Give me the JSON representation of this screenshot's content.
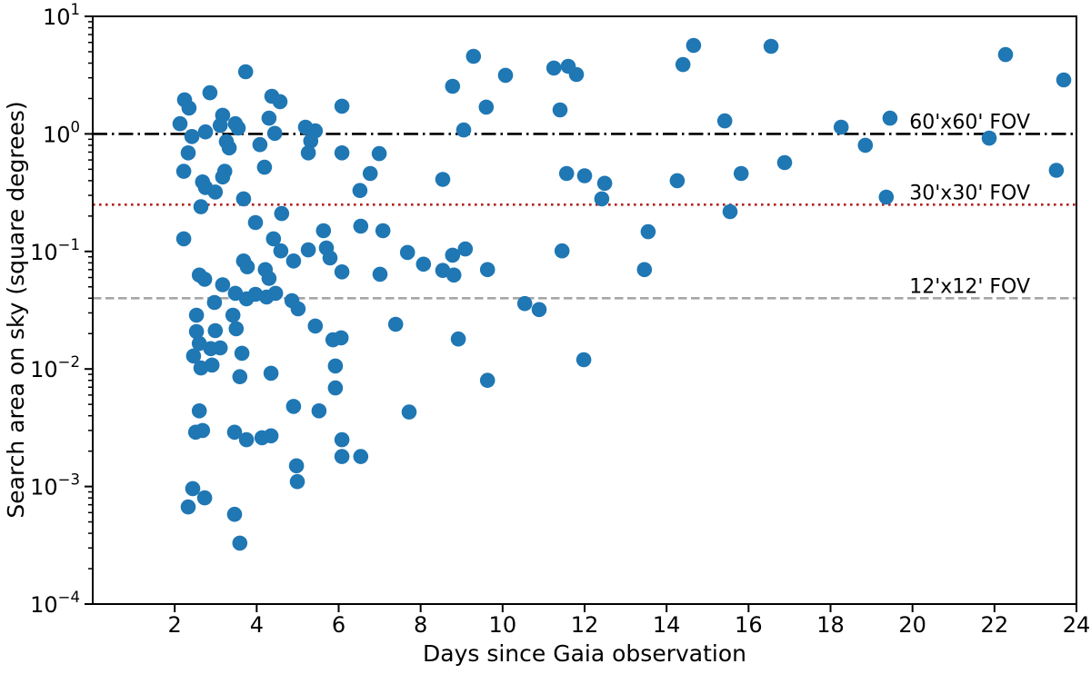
{
  "chart_data": {
    "type": "scatter",
    "title": "",
    "xlabel": "Days since Gaia observation",
    "ylabel": "Search area on sky (square degrees)",
    "xlim": [
      0,
      24
    ],
    "y_scale": "log",
    "ylim": [
      0.0001,
      10
    ],
    "grid": false,
    "marker_color": "#1f77b4",
    "x_tick_labels": [
      "2",
      "4",
      "6",
      "8",
      "10",
      "12",
      "14",
      "16",
      "18",
      "20",
      "22",
      "24"
    ],
    "x_tick_values": [
      2,
      4,
      6,
      8,
      10,
      12,
      14,
      16,
      18,
      20,
      22,
      24
    ],
    "y_tick_base": "10",
    "y_tick_exponents": [
      "1",
      "0",
      "−1",
      "−2",
      "−3",
      "−4"
    ],
    "y_tick_exp_values": [
      1,
      0,
      -1,
      -2,
      -3,
      -4
    ],
    "reference_lines": [
      {
        "label": "60'x60' FOV",
        "value": 1.0,
        "color": "#000000",
        "style": "dashdot"
      },
      {
        "label": "30'x30' FOV",
        "value": 0.25,
        "color": "#b22222",
        "style": "dotted"
      },
      {
        "label": "12'x12' FOV",
        "value": 0.04,
        "color": "#a6a6a6",
        "style": "dashed"
      }
    ],
    "points": [
      [
        3.73,
        3.38
      ],
      [
        2.86,
        2.24
      ],
      [
        2.24,
        1.95
      ],
      [
        2.35,
        1.66
      ],
      [
        4.37,
        2.09
      ],
      [
        4.57,
        1.88
      ],
      [
        6.08,
        1.72
      ],
      [
        2.13,
        1.22
      ],
      [
        3.17,
        1.44
      ],
      [
        3.11,
        1.18
      ],
      [
        3.48,
        1.22
      ],
      [
        3.55,
        1.12
      ],
      [
        2.75,
        1.04
      ],
      [
        2.42,
        0.95
      ],
      [
        3.26,
        0.86
      ],
      [
        3.33,
        0.76
      ],
      [
        4.3,
        1.36
      ],
      [
        4.44,
        1.01
      ],
      [
        5.19,
        1.14
      ],
      [
        5.43,
        1.06
      ],
      [
        5.32,
        0.87
      ],
      [
        4.08,
        0.81
      ],
      [
        2.33,
        0.69
      ],
      [
        5.26,
        0.69
      ],
      [
        6.08,
        0.69
      ],
      [
        4.19,
        0.52
      ],
      [
        2.22,
        0.48
      ],
      [
        3.22,
        0.48
      ],
      [
        3.17,
        0.43
      ],
      [
        2.68,
        0.39
      ],
      [
        2.75,
        0.35
      ],
      [
        2.99,
        0.32
      ],
      [
        6.52,
        0.33
      ],
      [
        2.64,
        0.24
      ],
      [
        3.68,
        0.28
      ],
      [
        4.61,
        0.21
      ],
      [
        3.97,
        0.176
      ],
      [
        2.22,
        0.128
      ],
      [
        5.63,
        0.15
      ],
      [
        5.7,
        0.107
      ],
      [
        4.41,
        0.128
      ],
      [
        4.59,
        0.101
      ],
      [
        5.26,
        0.103
      ],
      [
        5.79,
        0.088
      ],
      [
        3.68,
        0.083
      ],
      [
        3.77,
        0.074
      ],
      [
        4.9,
        0.083
      ],
      [
        2.6,
        0.063
      ],
      [
        2.73,
        0.058
      ],
      [
        3.17,
        0.052
      ],
      [
        4.21,
        0.07
      ],
      [
        4.3,
        0.059
      ],
      [
        6.08,
        0.067
      ],
      [
        6.99,
        0.68
      ],
      [
        6.77,
        0.46
      ],
      [
        6.54,
        0.164
      ],
      [
        7.08,
        0.15
      ],
      [
        7.01,
        0.064
      ],
      [
        2.97,
        0.0368
      ],
      [
        3.48,
        0.044
      ],
      [
        3.75,
        0.0395
      ],
      [
        3.97,
        0.0432
      ],
      [
        4.24,
        0.0409
      ],
      [
        4.46,
        0.044
      ],
      [
        4.86,
        0.0381
      ],
      [
        5.01,
        0.0325
      ],
      [
        2.53,
        0.0287
      ],
      [
        3.42,
        0.0287
      ],
      [
        3.5,
        0.022
      ],
      [
        2.53,
        0.0208
      ],
      [
        2.99,
        0.0212
      ],
      [
        2.6,
        0.0165
      ],
      [
        2.88,
        0.0149
      ],
      [
        3.11,
        0.0151
      ],
      [
        2.46,
        0.0129
      ],
      [
        2.64,
        0.0102
      ],
      [
        2.91,
        0.0108
      ],
      [
        3.59,
        0.0086
      ],
      [
        3.64,
        0.0136
      ],
      [
        4.35,
        0.0092
      ],
      [
        5.43,
        0.0232
      ],
      [
        5.86,
        0.0177
      ],
      [
        6.06,
        0.0184
      ],
      [
        5.92,
        0.0106
      ],
      [
        5.92,
        0.0069
      ],
      [
        4.9,
        0.0048
      ],
      [
        5.52,
        0.0044
      ],
      [
        2.6,
        0.0044
      ],
      [
        2.51,
        0.0029
      ],
      [
        2.68,
        0.003
      ],
      [
        3.46,
        0.0029
      ],
      [
        3.75,
        0.0025
      ],
      [
        4.13,
        0.0026
      ],
      [
        4.35,
        0.0027
      ],
      [
        6.08,
        0.0025
      ],
      [
        6.08,
        0.0018
      ],
      [
        6.54,
        0.0018
      ],
      [
        4.97,
        0.0015
      ],
      [
        4.99,
        0.0011
      ],
      [
        2.44,
        0.00096
      ],
      [
        2.73,
        0.0008
      ],
      [
        2.33,
        0.00067
      ],
      [
        3.46,
        0.00058
      ],
      [
        3.59,
        0.00033
      ],
      [
        9.29,
        4.57
      ],
      [
        10.07,
        3.15
      ],
      [
        11.25,
        3.63
      ],
      [
        11.6,
        3.76
      ],
      [
        11.8,
        3.2
      ],
      [
        8.78,
        2.54
      ],
      [
        9.6,
        1.69
      ],
      [
        11.4,
        1.6
      ],
      [
        9.05,
        1.08
      ],
      [
        8.54,
        0.41
      ],
      [
        11.56,
        0.46
      ],
      [
        12.0,
        0.44
      ],
      [
        12.49,
        0.38
      ],
      [
        12.42,
        0.28
      ],
      [
        7.68,
        0.098
      ],
      [
        8.07,
        0.078
      ],
      [
        8.78,
        0.093
      ],
      [
        9.09,
        0.105
      ],
      [
        8.54,
        0.069
      ],
      [
        8.81,
        0.063
      ],
      [
        9.63,
        0.07
      ],
      [
        11.45,
        0.101
      ],
      [
        7.39,
        0.024
      ],
      [
        8.92,
        0.018
      ],
      [
        7.72,
        0.0043
      ],
      [
        9.63,
        0.008
      ],
      [
        10.54,
        0.036
      ],
      [
        10.89,
        0.032
      ],
      [
        11.98,
        0.012
      ],
      [
        14.66,
        5.66
      ],
      [
        16.55,
        5.56
      ],
      [
        14.4,
        3.89
      ],
      [
        15.42,
        1.29
      ],
      [
        18.26,
        1.14
      ],
      [
        19.45,
        1.36
      ],
      [
        18.85,
        0.8
      ],
      [
        16.88,
        0.57
      ],
      [
        15.82,
        0.46
      ],
      [
        14.26,
        0.4
      ],
      [
        19.36,
        0.29
      ],
      [
        15.55,
        0.218
      ],
      [
        13.55,
        0.147
      ],
      [
        13.46,
        0.07
      ],
      [
        21.87,
        0.92
      ],
      [
        23.51,
        0.49
      ],
      [
        22.27,
        4.73
      ],
      [
        23.69,
        2.88
      ]
    ]
  }
}
